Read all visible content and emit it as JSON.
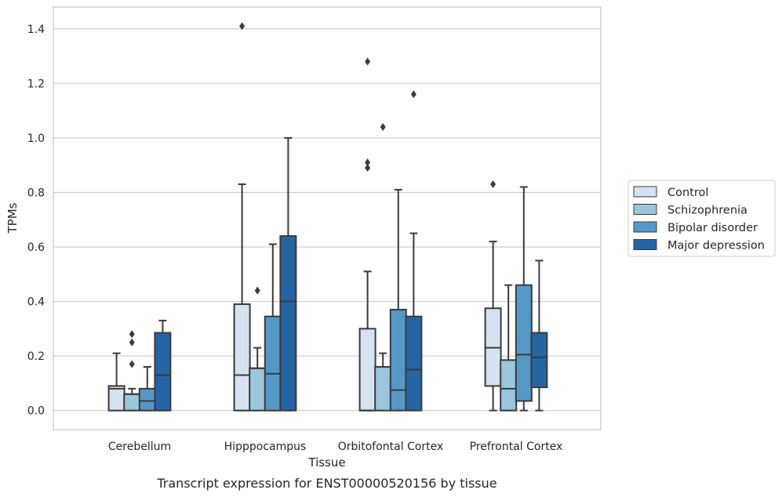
{
  "chart_data": {
    "type": "box",
    "title": "",
    "caption": "Transcript expression for ENST00000520156 by tissue",
    "xlabel": "Tissue",
    "ylabel": "TPMs",
    "ylim": [
      -0.07,
      1.48
    ],
    "yticks": [
      0.0,
      0.2,
      0.4,
      0.6,
      0.8,
      1.0,
      1.2,
      1.4
    ],
    "ytick_labels": [
      "0.0",
      "0.2",
      "0.4",
      "0.6",
      "0.8",
      "1.0",
      "1.2",
      "1.4"
    ],
    "grid": true,
    "legend_position": "right",
    "categories": [
      "Cerebellum",
      "Hipppocampus",
      "Orbitofontal Cortex",
      "Prefrontal Cortex"
    ],
    "series": [
      {
        "name": "Control",
        "color": "#d5e3f1",
        "boxes": [
          {
            "whisker_low": 0.0,
            "q1": 0.0,
            "median": 0.08,
            "q3": 0.09,
            "whisker_high": 0.21,
            "outliers": []
          },
          {
            "whisker_low": 0.0,
            "q1": 0.0,
            "median": 0.13,
            "q3": 0.39,
            "whisker_high": 0.83,
            "outliers": [
              1.41
            ]
          },
          {
            "whisker_low": 0.0,
            "q1": 0.0,
            "median": 0.0,
            "q3": 0.3,
            "whisker_high": 0.51,
            "outliers": [
              0.89,
              0.91,
              1.28
            ]
          },
          {
            "whisker_low": 0.0,
            "q1": 0.09,
            "median": 0.23,
            "q3": 0.375,
            "whisker_high": 0.62,
            "outliers": [
              0.83
            ]
          }
        ]
      },
      {
        "name": "Schizophrenia",
        "color": "#9ac6de",
        "boxes": [
          {
            "whisker_low": 0.0,
            "q1": 0.0,
            "median": 0.06,
            "q3": 0.06,
            "whisker_high": 0.08,
            "outliers": [
              0.17,
              0.25,
              0.28
            ]
          },
          {
            "whisker_low": 0.0,
            "q1": 0.0,
            "median": 0.155,
            "q3": 0.155,
            "whisker_high": 0.23,
            "outliers": [
              0.44
            ]
          },
          {
            "whisker_low": 0.0,
            "q1": 0.0,
            "median": 0.16,
            "q3": 0.16,
            "whisker_high": 0.21,
            "outliers": [
              1.04
            ]
          },
          {
            "whisker_low": 0.0,
            "q1": 0.0,
            "median": 0.08,
            "q3": 0.185,
            "whisker_high": 0.46,
            "outliers": []
          }
        ]
      },
      {
        "name": "Bipolar disorder",
        "color": "#5598c6",
        "boxes": [
          {
            "whisker_low": 0.0,
            "q1": 0.0,
            "median": 0.035,
            "q3": 0.08,
            "whisker_high": 0.16,
            "outliers": []
          },
          {
            "whisker_low": 0.0,
            "q1": 0.0,
            "median": 0.135,
            "q3": 0.345,
            "whisker_high": 0.61,
            "outliers": []
          },
          {
            "whisker_low": 0.0,
            "q1": 0.0,
            "median": 0.075,
            "q3": 0.37,
            "whisker_high": 0.81,
            "outliers": []
          },
          {
            "whisker_low": 0.0,
            "q1": 0.035,
            "median": 0.205,
            "q3": 0.46,
            "whisker_high": 0.82,
            "outliers": []
          }
        ]
      },
      {
        "name": "Major depression",
        "color": "#2565a5",
        "boxes": [
          {
            "whisker_low": 0.0,
            "q1": 0.0,
            "median": 0.13,
            "q3": 0.285,
            "whisker_high": 0.33,
            "outliers": []
          },
          {
            "whisker_low": 0.0,
            "q1": 0.0,
            "median": 0.4,
            "q3": 0.64,
            "whisker_high": 1.0,
            "outliers": []
          },
          {
            "whisker_low": 0.0,
            "q1": 0.0,
            "median": 0.15,
            "q3": 0.345,
            "whisker_high": 0.65,
            "outliers": [
              1.16
            ]
          },
          {
            "whisker_low": 0.0,
            "q1": 0.085,
            "median": 0.195,
            "q3": 0.285,
            "whisker_high": 0.55,
            "outliers": []
          }
        ]
      }
    ]
  }
}
